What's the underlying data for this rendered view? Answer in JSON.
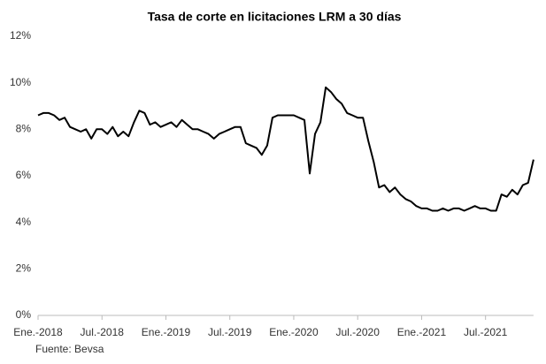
{
  "chart_data": {
    "type": "line",
    "title": "Tasa de corte en licitaciones LRM a 30 días",
    "source": "Fuente: Bevsa",
    "categories": [
      "Ene.-2018",
      null,
      null,
      null,
      null,
      null,
      null,
      null,
      null,
      null,
      null,
      null,
      "Jul.-2018",
      null,
      null,
      null,
      null,
      null,
      null,
      null,
      null,
      null,
      null,
      null,
      "Ene.-2019",
      null,
      null,
      null,
      null,
      null,
      null,
      null,
      null,
      null,
      null,
      null,
      "Jul.-2019",
      null,
      null,
      null,
      null,
      null,
      null,
      null,
      null,
      null,
      null,
      null,
      "Ene.-2020",
      null,
      null,
      null,
      null,
      null,
      null,
      null,
      null,
      null,
      null,
      null,
      "Jul.-2020",
      null,
      null,
      null,
      null,
      null,
      null,
      null,
      null,
      null,
      null,
      null,
      "Ene.-2021",
      null,
      null,
      null,
      null,
      null,
      null,
      null,
      null,
      null,
      null,
      null,
      "Jul.-2021",
      null,
      null,
      null,
      null,
      null,
      null,
      null,
      null,
      null
    ],
    "series": [
      {
        "name": "Tasa de corte",
        "color": "#000000",
        "values": [
          8.6,
          8.7,
          8.7,
          8.6,
          8.4,
          8.5,
          8.1,
          8.0,
          7.9,
          8.0,
          7.6,
          8.0,
          8.0,
          7.8,
          8.1,
          7.7,
          7.9,
          7.7,
          8.3,
          8.8,
          8.7,
          8.2,
          8.3,
          8.1,
          8.2,
          8.3,
          8.1,
          8.4,
          8.2,
          8.0,
          8.0,
          7.9,
          7.8,
          7.6,
          7.8,
          7.9,
          8.0,
          8.1,
          8.1,
          7.4,
          7.3,
          7.2,
          6.9,
          7.3,
          8.5,
          8.6,
          8.6,
          8.6,
          8.6,
          8.5,
          8.4,
          6.1,
          7.8,
          8.3,
          9.8,
          9.6,
          9.3,
          9.1,
          8.7,
          8.6,
          8.5,
          8.5,
          7.5,
          6.6,
          5.5,
          5.6,
          5.3,
          5.5,
          5.2,
          5.0,
          4.9,
          4.7,
          4.6,
          4.6,
          4.5,
          4.5,
          4.6,
          4.5,
          4.6,
          4.6,
          4.5,
          4.6,
          4.7,
          4.6,
          4.6,
          4.5,
          4.5,
          5.2,
          5.1,
          5.4,
          5.2,
          5.6,
          5.7,
          6.7
        ]
      }
    ],
    "ylim": [
      0,
      12
    ],
    "yticks": [
      {
        "value": 0,
        "label": "0%"
      },
      {
        "value": 2,
        "label": "2%"
      },
      {
        "value": 4,
        "label": "4%"
      },
      {
        "value": 6,
        "label": "6%"
      },
      {
        "value": 8,
        "label": "8%"
      },
      {
        "value": 10,
        "label": "10%"
      },
      {
        "value": 12,
        "label": "12%"
      }
    ],
    "grid": false
  }
}
